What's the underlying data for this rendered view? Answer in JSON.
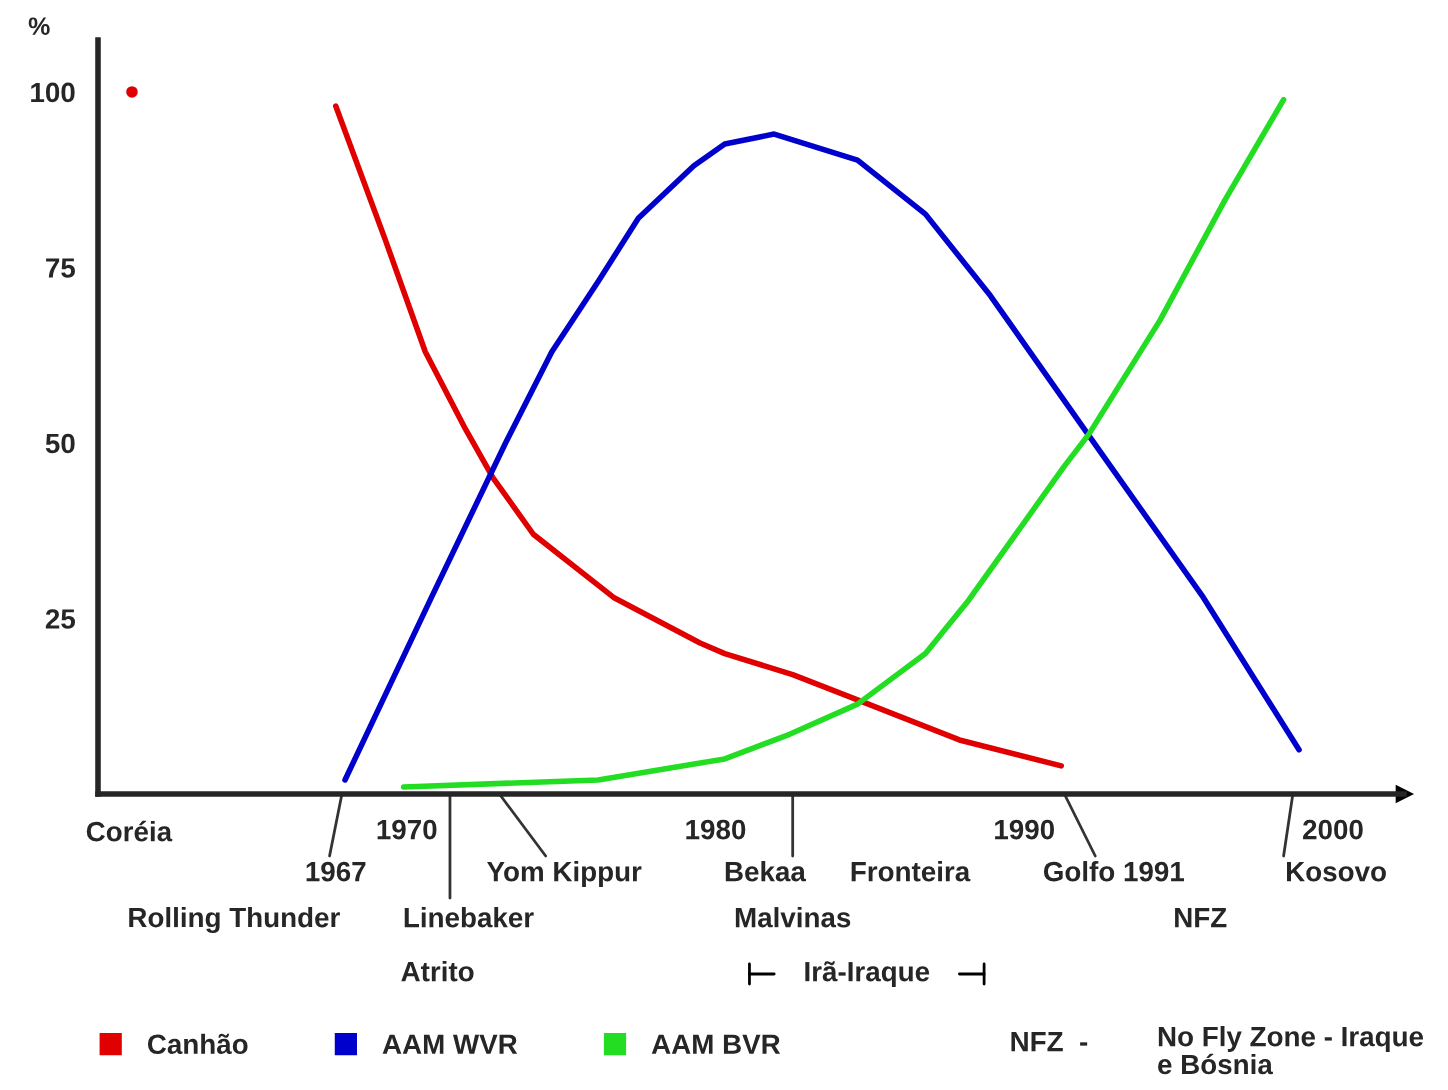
{
  "chart_data": {
    "type": "line",
    "ylabel": "%",
    "xlim": [
      1960,
      2002.3
    ],
    "xticks": [
      1970,
      1980,
      1990,
      2000
    ],
    "ylim": [
      0,
      107.4
    ],
    "yticks": [
      25,
      50,
      75,
      100
    ],
    "legend": "bottom",
    "series": [
      {
        "name": "Canhão",
        "color": "#e00000",
        "x": [
          1967.7,
          1969.3,
          1970.6,
          1971.9,
          1972.8,
          1974.1,
          1976.7,
          1979.5,
          1980.3,
          1982.5,
          1984.6,
          1987.9,
          1991.2
        ],
        "values": [
          98,
          79,
          63,
          52,
          45,
          37,
          28,
          21.5,
          20,
          17,
          13.4,
          7.7,
          4
        ]
      },
      {
        "name": "AAM WVR",
        "color": "#0000cc",
        "x": [
          1968.0,
          1970.8,
          1973.2,
          1974.7,
          1976.2,
          1977.5,
          1979.3,
          1980.3,
          1981.9,
          1984.6,
          1986.8,
          1988.9,
          1992.1,
          1995.8,
          1998.9
        ],
        "values": [
          2,
          28,
          50,
          63,
          73,
          82,
          89.5,
          92.6,
          94,
          90.3,
          82.6,
          71,
          51,
          28,
          6.3
        ]
      },
      {
        "name": "AAM BVR",
        "color": "#22dd22",
        "x": [
          1969.9,
          1976.2,
          1980.3,
          1982.4,
          1984.6,
          1986.8,
          1988.2,
          1991.3,
          1992.1,
          1994.4,
          1996.5,
          1998.4
        ],
        "values": [
          1,
          2,
          5,
          8.5,
          12.8,
          20,
          27.6,
          46.7,
          51.3,
          67.5,
          84.6,
          98.9
        ]
      },
      {
        "type": "scatter",
        "color": "#e00000",
        "x": [
          1961.1
        ],
        "values": [
          100
        ]
      }
    ],
    "annotations": [
      "Coréia",
      "1967",
      "Rolling Thunder",
      "Linebaker",
      "Atrito",
      "Yom Kippur",
      "Bekaa",
      "Malvinas",
      "Fronteira",
      "Irã-Iraque",
      "Golfo 1991",
      "NFZ",
      "Kosovo",
      "NFZ  -",
      "No Fly Zone - Iraque\ne Bósnia"
    ]
  }
}
